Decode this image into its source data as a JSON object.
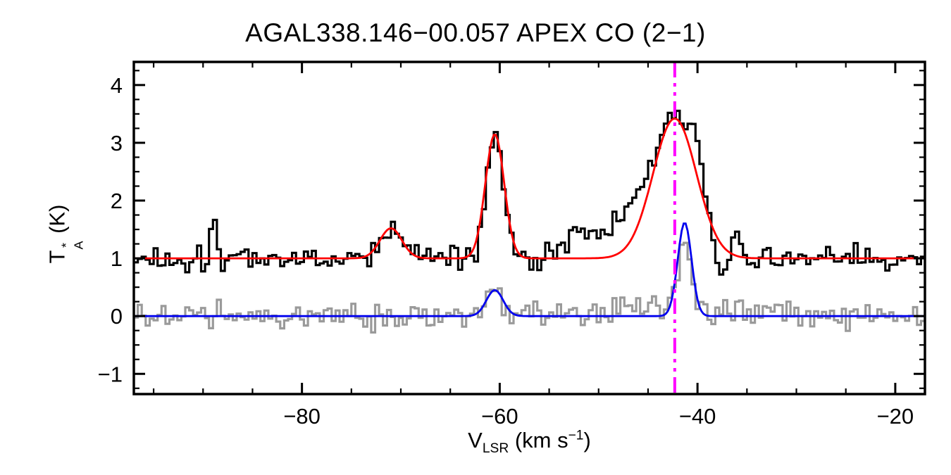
{
  "chart_data": {
    "type": "line",
    "title": "AGAL338.146−00.057  APEX CO (2−1)",
    "xlabel": "V_LSR (km s^−1)",
    "ylabel": "T*_A (K)",
    "xlabel_parts": {
      "v": "V",
      "sub": "LSR",
      "mid": " (km s",
      "sup": "−1",
      "end": ")"
    },
    "ylabel_parts": {
      "t": "T",
      "sup": "*",
      "sub": "A",
      "unit": " (K)"
    },
    "xlim": [
      -97,
      -17
    ],
    "ylim": [
      -1.35,
      4.4
    ],
    "xticks": [
      -80,
      -60,
      -40,
      -20
    ],
    "xtick_labels": [
      "−80",
      "−60",
      "−40",
      "−20"
    ],
    "xminor_step": 5,
    "yticks": [
      -1,
      0,
      1,
      2,
      3,
      4
    ],
    "ytick_labels": [
      "−1",
      "0",
      "1",
      "2",
      "3",
      "4"
    ],
    "yminor_step": 0.25,
    "grid": false,
    "legend": "none",
    "channel_width_kms": 0.4,
    "components_format": "[center_km_s, amplitude_K, sigma_km_s]",
    "vline": {
      "x": -42.3,
      "color": "#ff00ff",
      "style": "dash-dot-dot",
      "width": 4
    },
    "series": [
      {
        "name": "gray-spectrum-offset0",
        "style": "histogram",
        "color": "#9a9a9a",
        "width": 3.2,
        "baseline": 0.0,
        "noise": 0.12,
        "seed": 20240,
        "components": [
          [
            -60.5,
            0.45,
            0.8
          ],
          [
            -45.8,
            0.28,
            1.3
          ],
          [
            -41.3,
            1.5,
            0.65
          ]
        ]
      },
      {
        "name": "blue-gaussian-fit",
        "style": "curve",
        "color": "#0000ee",
        "width": 2.8,
        "baseline": 0.0,
        "noise": 0,
        "seed": 0,
        "components": [
          [
            -60.5,
            0.45,
            0.85
          ],
          [
            -41.3,
            1.62,
            0.7
          ]
        ]
      },
      {
        "name": "black-co21-spectrum-offset1",
        "style": "histogram",
        "color": "#000000",
        "width": 3.2,
        "baseline": 1.0,
        "noise": 0.11,
        "seed": 1337,
        "components": [
          [
            -89.0,
            0.85,
            0.3
          ],
          [
            -71.0,
            0.52,
            1.1
          ],
          [
            -60.5,
            2.1,
            0.9
          ],
          [
            -52.2,
            0.45,
            1.4
          ],
          [
            -49.0,
            0.3,
            1.5
          ],
          [
            -45.5,
            1.05,
            2.0
          ],
          [
            -42.3,
            2.1,
            1.5
          ],
          [
            -39.8,
            1.35,
            1.0
          ],
          [
            -37.5,
            -0.3,
            0.9
          ],
          [
            -36.2,
            0.5,
            0.4
          ]
        ]
      },
      {
        "name": "red-gaussian-fit",
        "style": "curve",
        "color": "#ff0000",
        "width": 2.8,
        "baseline": 1.0,
        "noise": 0,
        "seed": 0,
        "components": [
          [
            -71.0,
            0.52,
            1.1
          ],
          [
            -60.5,
            2.15,
            0.95
          ],
          [
            -42.3,
            2.42,
            2.2
          ]
        ]
      }
    ]
  }
}
